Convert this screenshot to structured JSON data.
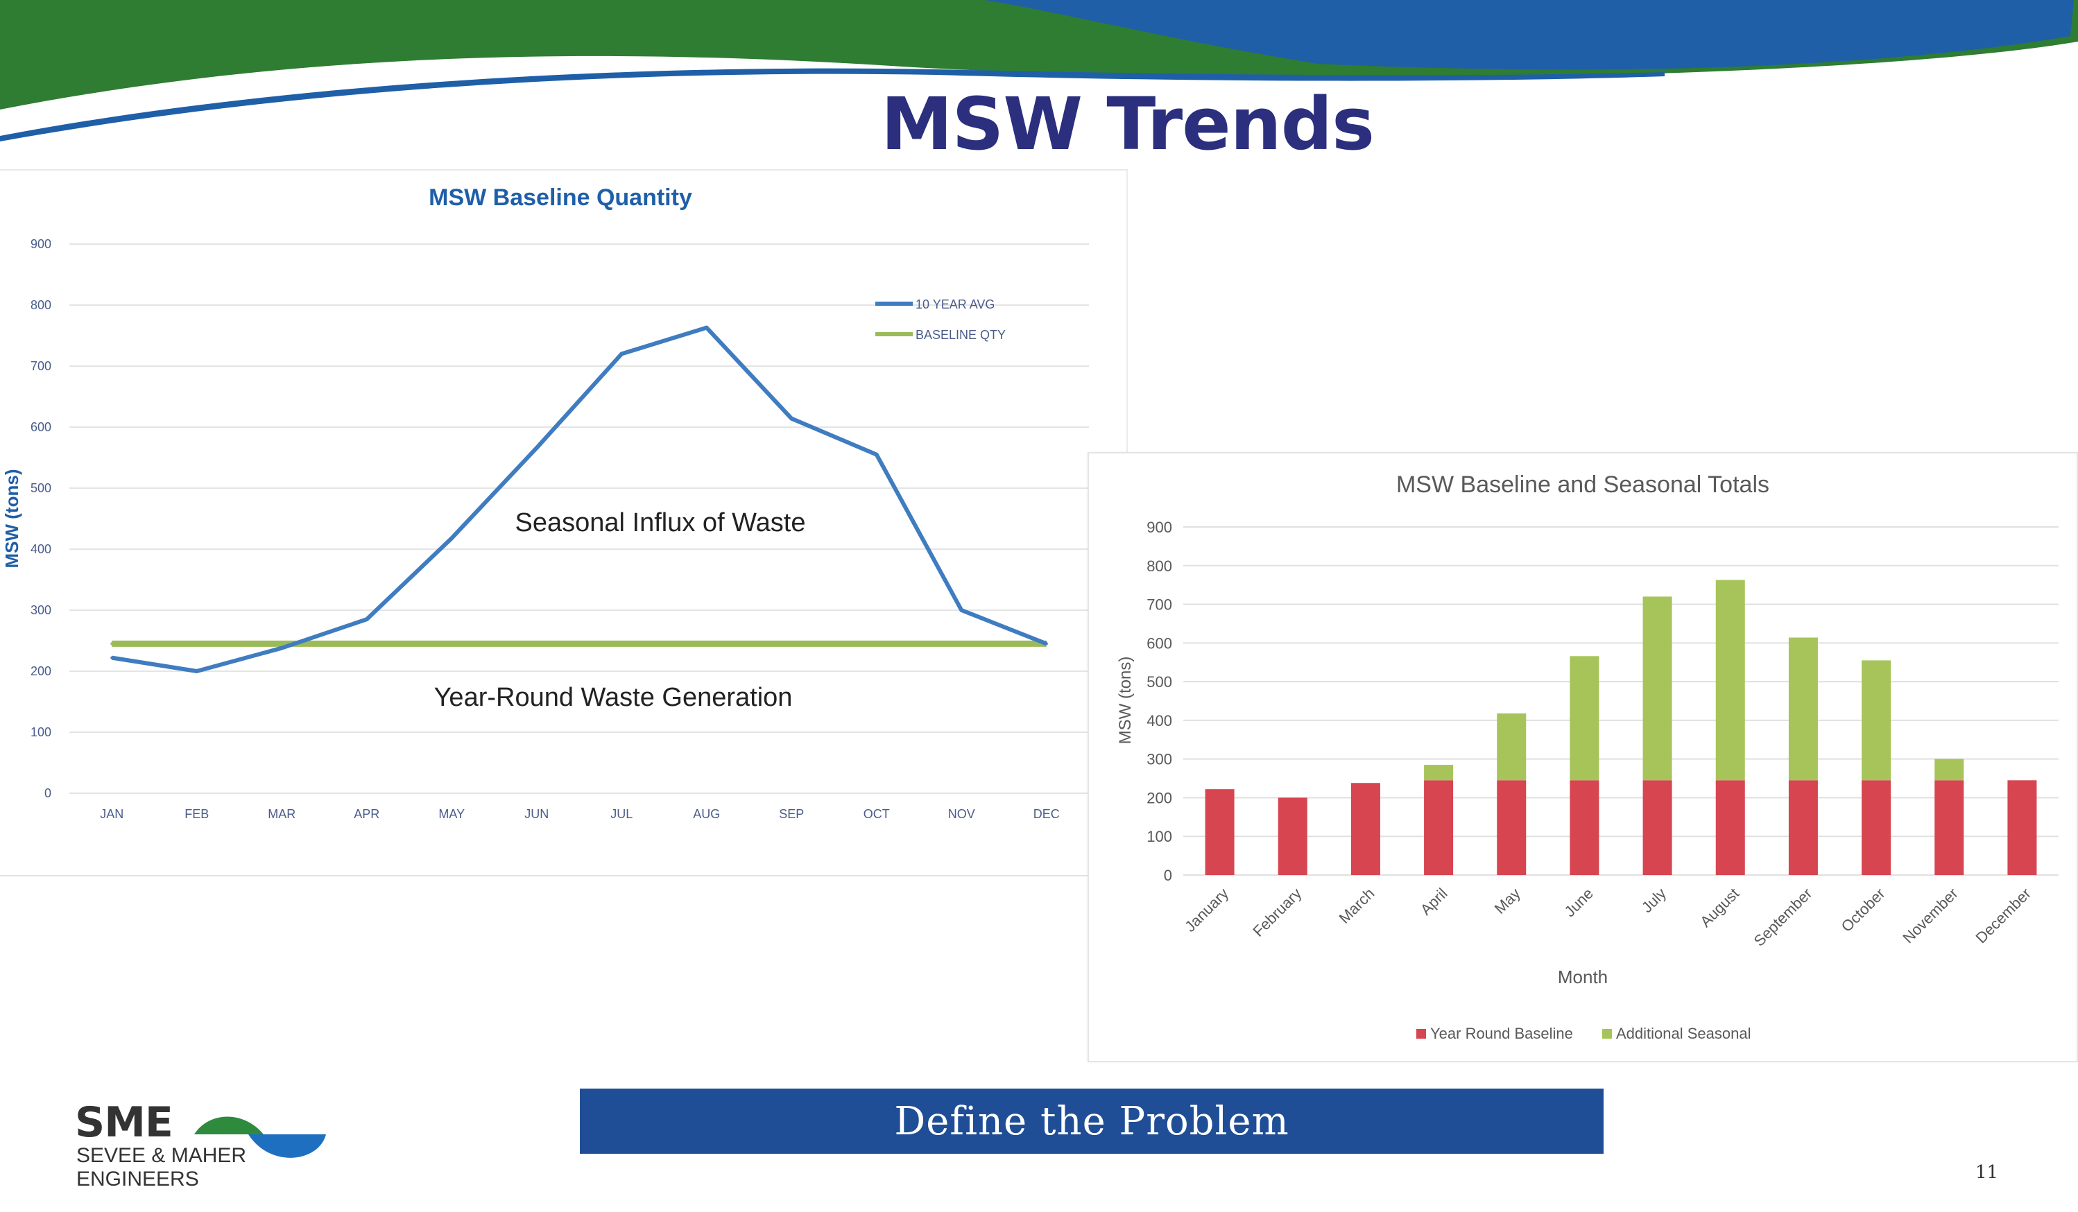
{
  "slide": {
    "title": "MSW Trends",
    "footer_label": "Define the Problem",
    "page_number": "11",
    "logo": {
      "abbr": "SME",
      "line1": "SEVEE & MAHER",
      "line2": "ENGINEERS"
    }
  },
  "colors": {
    "banner_green": "#2e7d32",
    "banner_blue": "#1f5fa8",
    "title": "#2b2f7d",
    "line_avg": "#3f7cc0",
    "line_baseline": "#9bbb59",
    "bar_baseline": "#d64550",
    "bar_seasonal": "#a6c45a",
    "footer_bar": "#1f4e96"
  },
  "chart_data": [
    {
      "type": "line",
      "title": "MSW Baseline Quantity",
      "xlabel": "",
      "ylabel": "MSW (tons)",
      "categories": [
        "JAN",
        "FEB",
        "MAR",
        "APR",
        "MAY",
        "JUN",
        "JUL",
        "AUG",
        "SEP",
        "OCT",
        "NOV",
        "DEC"
      ],
      "yticks": [
        "0",
        "100",
        "200",
        "300",
        "400",
        "500",
        "600",
        "700",
        "800",
        "900"
      ],
      "ylim": [
        0,
        900
      ],
      "series": [
        {
          "name": "10 YEAR AVG",
          "values": [
            222,
            200,
            238,
            285,
            418,
            566,
            720,
            763,
            614,
            555,
            300,
            245
          ]
        },
        {
          "name": "BASELINE QTY",
          "values": [
            245,
            245,
            245,
            245,
            245,
            245,
            245,
            245,
            245,
            245,
            245,
            245
          ]
        }
      ],
      "annotations": [
        "Seasonal Influx of Waste",
        "Year-Round Waste Generation"
      ],
      "legend": "top-right",
      "grid": true
    },
    {
      "type": "bar",
      "stacked": true,
      "title": "MSW Baseline and Seasonal Totals",
      "xlabel": "Month",
      "ylabel": "MSW (tons)",
      "categories": [
        "January",
        "February",
        "March",
        "April",
        "May",
        "June",
        "July",
        "August",
        "September",
        "October",
        "November",
        "December"
      ],
      "yticks": [
        "0",
        "100",
        "200",
        "300",
        "400",
        "500",
        "600",
        "700",
        "800",
        "900"
      ],
      "ylim": [
        0,
        900
      ],
      "series": [
        {
          "name": "Year Round Baseline",
          "values": [
            222,
            200,
            238,
            245,
            245,
            245,
            245,
            245,
            245,
            245,
            245,
            245
          ]
        },
        {
          "name": "Additional Seasonal",
          "values": [
            0,
            0,
            0,
            40,
            173,
            321,
            475,
            518,
            369,
            310,
            55,
            0
          ]
        }
      ],
      "legend": "bottom",
      "grid": true
    }
  ]
}
